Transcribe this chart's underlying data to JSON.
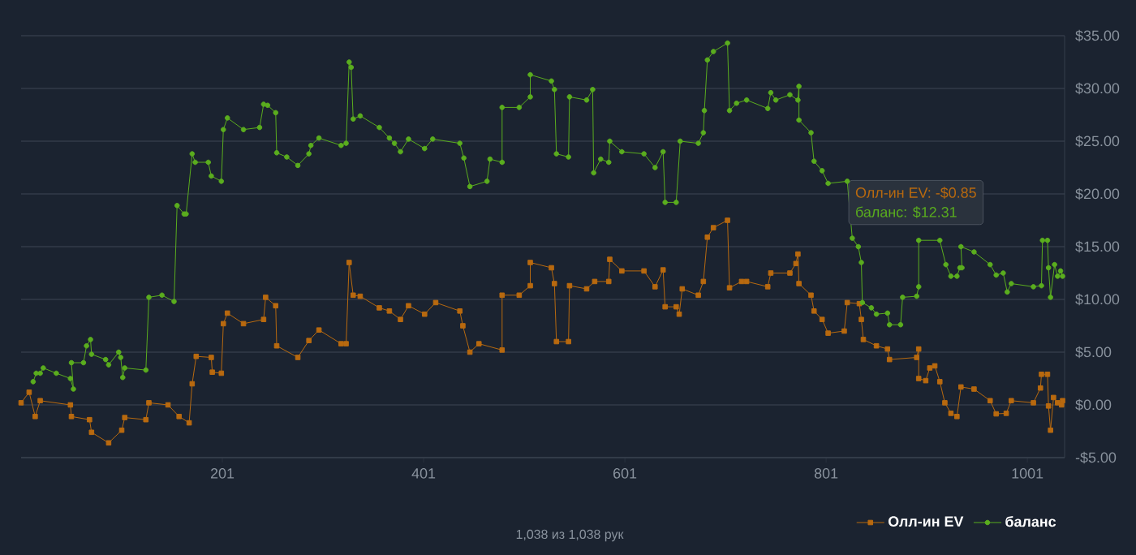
{
  "chart_data": {
    "type": "line",
    "series": [
      {
        "name": "Олл-ин EV",
        "color": "#b8690f",
        "marker": "square",
        "x": [
          1,
          9,
          15,
          20,
          50,
          51,
          69,
          71,
          88,
          101,
          104,
          125,
          128,
          147,
          158,
          168,
          171,
          175,
          190,
          191,
          200,
          202,
          206,
          222,
          242,
          244,
          254,
          255,
          276,
          287,
          297,
          319,
          324,
          327,
          331,
          338,
          357,
          367,
          378,
          386,
          402,
          413,
          437,
          440,
          447,
          456,
          479,
          479,
          496,
          507,
          507,
          528,
          531,
          533,
          545,
          546,
          563,
          571,
          585,
          586,
          598,
          620,
          631,
          639,
          641,
          652,
          655,
          658,
          674,
          679,
          683,
          689,
          703,
          705,
          717,
          722,
          743,
          746,
          765,
          771,
          773,
          774,
          786,
          789,
          797,
          803,
          819,
          822,
          834,
          836,
          838,
          851,
          862,
          864,
          891,
          893,
          893,
          900,
          904,
          909,
          914,
          919,
          925,
          931,
          935,
          948,
          964,
          970,
          980,
          985,
          1007,
          1014,
          1015,
          1021,
          1022,
          1024,
          1027,
          1031,
          1035,
          1036
        ],
        "values": [
          0.2,
          1.2,
          -1.1,
          0.4,
          0.0,
          -1.1,
          -1.4,
          -2.6,
          -3.6,
          -2.4,
          -1.2,
          -1.4,
          0.2,
          0.0,
          -1.1,
          -1.7,
          2.0,
          4.6,
          4.5,
          3.1,
          3.0,
          7.7,
          8.7,
          7.7,
          8.1,
          10.2,
          9.4,
          5.6,
          4.5,
          6.1,
          7.1,
          5.8,
          5.8,
          13.5,
          10.4,
          10.3,
          9.2,
          8.9,
          8.1,
          9.4,
          8.6,
          9.7,
          8.9,
          7.5,
          5.0,
          5.8,
          5.2,
          10.4,
          10.4,
          11.3,
          13.5,
          13.0,
          11.5,
          6.0,
          6.0,
          11.3,
          11.0,
          11.7,
          11.7,
          13.8,
          12.7,
          12.7,
          11.2,
          12.8,
          9.3,
          9.3,
          8.6,
          11.0,
          10.4,
          11.7,
          15.9,
          16.8,
          17.5,
          11.1,
          11.7,
          11.7,
          11.2,
          12.5,
          12.5,
          13.4,
          14.3,
          11.5,
          10.4,
          8.9,
          8.1,
          6.8,
          7.0,
          9.7,
          9.6,
          8.1,
          6.2,
          5.6,
          5.3,
          4.3,
          4.5,
          5.3,
          2.5,
          2.3,
          3.5,
          3.7,
          2.2,
          0.2,
          -0.8,
          -1.1,
          1.7,
          1.5,
          0.4,
          -0.85,
          -0.8,
          0.4,
          0.2,
          1.6,
          2.9,
          2.9,
          -0.1,
          -2.4,
          0.7,
          0.2,
          0.0,
          0.4
        ]
      },
      {
        "name": "баланс",
        "color": "#5aad1e",
        "marker": "circle",
        "x": [
          13,
          16,
          20,
          23,
          36,
          50,
          53,
          51,
          63,
          66,
          70,
          71,
          85,
          88,
          98,
          100,
          102,
          104,
          125,
          128,
          141,
          153,
          156,
          163,
          165,
          171,
          174,
          187,
          190,
          200,
          202,
          206,
          222,
          238,
          242,
          246,
          254,
          255,
          265,
          276,
          287,
          289,
          297,
          319,
          324,
          327,
          329,
          331,
          338,
          357,
          367,
          372,
          378,
          386,
          402,
          410,
          437,
          441,
          447,
          464,
          467,
          479,
          479,
          496,
          507,
          507,
          528,
          531,
          533,
          545,
          546,
          563,
          569,
          570,
          577,
          585,
          586,
          598,
          620,
          631,
          639,
          641,
          652,
          656,
          674,
          679,
          680,
          683,
          689,
          703,
          705,
          712,
          722,
          743,
          746,
          751,
          765,
          773,
          774,
          774,
          786,
          789,
          797,
          803,
          822,
          827,
          833,
          836,
          837,
          846,
          851,
          862,
          864,
          875,
          877,
          891,
          893,
          893,
          914,
          920,
          925,
          931,
          934,
          936,
          935,
          948,
          964,
          970,
          977,
          981,
          985,
          1007,
          1015,
          1016,
          1021,
          1022,
          1024,
          1028,
          1031,
          1034,
          1036
        ],
        "values": [
          2.2,
          3.0,
          3.0,
          3.5,
          3.0,
          2.5,
          1.5,
          4.0,
          4.0,
          5.6,
          6.2,
          4.8,
          4.3,
          3.8,
          5.0,
          4.5,
          2.6,
          3.5,
          3.3,
          10.2,
          10.4,
          9.8,
          18.9,
          18.1,
          18.1,
          23.8,
          23.0,
          23.0,
          21.7,
          21.2,
          26.1,
          27.2,
          26.1,
          26.3,
          28.5,
          28.4,
          27.7,
          23.9,
          23.5,
          22.7,
          23.8,
          24.6,
          25.3,
          24.6,
          24.8,
          32.5,
          32.0,
          27.1,
          27.4,
          26.3,
          25.3,
          24.8,
          24.0,
          25.2,
          24.3,
          25.2,
          24.8,
          23.4,
          20.7,
          21.2,
          23.3,
          23.0,
          28.2,
          28.2,
          29.2,
          31.3,
          30.7,
          29.9,
          23.8,
          23.5,
          29.2,
          28.9,
          29.9,
          22.0,
          23.3,
          23.0,
          25.0,
          24.0,
          23.8,
          22.5,
          24.0,
          19.2,
          19.2,
          25.0,
          24.8,
          25.8,
          27.9,
          32.7,
          33.5,
          34.3,
          27.9,
          28.6,
          28.9,
          28.1,
          29.6,
          28.9,
          29.4,
          28.9,
          30.2,
          27.0,
          25.8,
          23.1,
          22.2,
          21.0,
          21.2,
          15.8,
          15.0,
          13.5,
          9.7,
          9.2,
          8.6,
          8.7,
          7.6,
          7.6,
          10.2,
          10.3,
          11.2,
          15.6,
          15.6,
          13.3,
          12.2,
          12.2,
          13.0,
          13.0,
          15.0,
          14.5,
          13.3,
          12.31,
          12.5,
          10.7,
          11.5,
          11.2,
          11.3,
          15.6,
          15.6,
          13.0,
          10.2,
          13.3,
          12.2,
          12.7,
          12.2
        ]
      }
    ],
    "xlim": [
      1,
      1038
    ],
    "xticks": [
      201,
      401,
      601,
      801,
      1001
    ],
    "ylim": [
      -5,
      35
    ],
    "yticks": [
      {
        "value": -5,
        "label": "-$5.00"
      },
      {
        "value": 0,
        "label": "$0.00"
      },
      {
        "value": 5,
        "label": "$5.00"
      },
      {
        "value": 10,
        "label": "$10.00"
      },
      {
        "value": 15,
        "label": "$15.00"
      },
      {
        "value": 20,
        "label": "$20.00"
      },
      {
        "value": 25,
        "label": "$25.00"
      },
      {
        "value": 30,
        "label": "$30.00"
      },
      {
        "value": 35,
        "label": "$35.00"
      }
    ],
    "grid": "y",
    "legend": "bottom right",
    "annotations": [
      "Олл-ин EV: -$0.85",
      "баланс: $12.31",
      "1,038 из 1,038 рук"
    ]
  }
}
